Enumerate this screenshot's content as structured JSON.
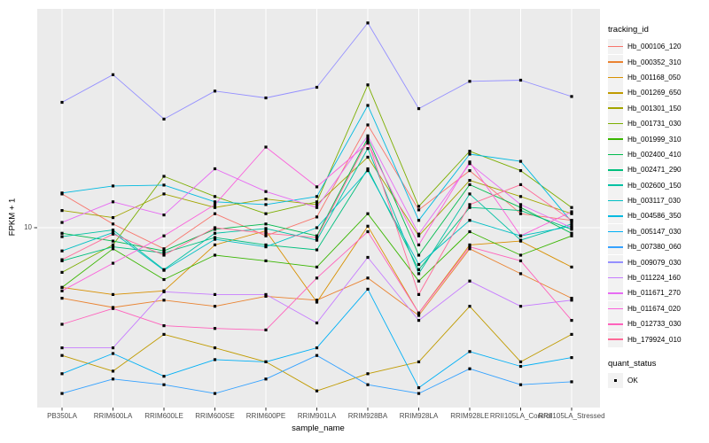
{
  "figure": {
    "background": "#FFFFFF",
    "panel_background": "#EBEBEB",
    "grid_color": "#FFFFFF",
    "tick_color": "#333333",
    "tick_label_color": "#4D4D4D",
    "point_color": "#000000"
  },
  "axes": {
    "y": {
      "label": "FPKM + 1",
      "scale": "log10",
      "tick_labels": [
        "10"
      ]
    },
    "x": {
      "label": "sample_name"
    }
  },
  "legend": {
    "tracking": {
      "title": "tracking_id"
    },
    "quant": {
      "title": "quant_status",
      "items": [
        {
          "label": "OK",
          "marker": "black-square"
        }
      ]
    }
  },
  "chart_data": {
    "type": "line",
    "title": "",
    "xlabel": "sample_name",
    "ylabel": "FPKM + 1",
    "yscale": "log10",
    "yticks": [
      10
    ],
    "ylim": [
      1,
      170
    ],
    "grid": true,
    "legend_position": "right",
    "marker": "black-square",
    "x": [
      "PB350LA",
      "RRIM600LA",
      "RRIM600LE",
      "RRIM600SE",
      "RRIM600PE",
      "RRIM901LA",
      "RRIM928BA",
      "RRIM928LA",
      "RRIM928LE",
      "RRII105LA_Control",
      "RRII105LA_Stressed"
    ],
    "series": [
      {
        "name": "Hb_000106_120",
        "color": "#F8766D",
        "values": [
          15.5,
          10.5,
          7.6,
          12.0,
          9.0,
          11.5,
          38.0,
          12.6,
          21.0,
          12.0,
          11.0
        ]
      },
      {
        "name": "Hb_000352_310",
        "color": "#EA8331",
        "values": [
          4.0,
          3.55,
          3.9,
          3.6,
          4.1,
          3.9,
          5.2,
          3.2,
          7.6,
          5.5,
          4.0
        ]
      },
      {
        "name": "Hb_001168_050",
        "color": "#D89000",
        "values": [
          4.6,
          4.2,
          4.4,
          8.0,
          9.6,
          3.8,
          10.2,
          3.3,
          8.0,
          8.4,
          6.0
        ]
      },
      {
        "name": "Hb_001269_650",
        "color": "#C09B00",
        "values": [
          1.9,
          1.55,
          2.5,
          2.1,
          1.75,
          1.2,
          1.5,
          1.75,
          3.6,
          1.75,
          2.5
        ]
      },
      {
        "name": "Hb_001301_150",
        "color": "#A3A500",
        "values": [
          12.5,
          11.4,
          15.5,
          13.0,
          14.5,
          13.5,
          25.0,
          9.0,
          18.5,
          15.0,
          12.0
        ]
      },
      {
        "name": "Hb_001731_030",
        "color": "#7CAE00",
        "values": [
          5.6,
          8.0,
          19.5,
          15.0,
          12.0,
          14.0,
          64.0,
          13.2,
          27.0,
          21.0,
          13.0
        ]
      },
      {
        "name": "Hb_001999_310",
        "color": "#39B600",
        "values": [
          4.6,
          7.6,
          5.1,
          7.0,
          6.5,
          6.0,
          12.0,
          5.0,
          9.5,
          7.0,
          9.0
        ]
      },
      {
        "name": "Hb_002400_410",
        "color": "#00BB4E",
        "values": [
          9.3,
          8.4,
          7.4,
          9.8,
          10.5,
          9.0,
          32.0,
          7.0,
          17.5,
          13.0,
          9.3
        ]
      },
      {
        "name": "Hb_002471_290",
        "color": "#00BF7D",
        "values": [
          6.5,
          7.8,
          7.2,
          8.8,
          8.0,
          7.5,
          21.5,
          5.8,
          13.0,
          12.5,
          9.8
        ]
      },
      {
        "name": "Hb_002600_150",
        "color": "#00C1A3",
        "values": [
          8.9,
          9.7,
          5.8,
          9.3,
          9.9,
          8.5,
          28.0,
          5.5,
          15.5,
          8.5,
          10.5
        ]
      },
      {
        "name": "Hb_003117_030",
        "color": "#00BFC4",
        "values": [
          7.4,
          9.4,
          5.75,
          8.6,
          7.8,
          10.0,
          21.0,
          6.2,
          11.0,
          9.0,
          10.2
        ]
      },
      {
        "name": "Hb_004586_350",
        "color": "#00BAE0",
        "values": [
          15.7,
          17.2,
          17.4,
          14.0,
          13.5,
          15.0,
          49.0,
          11.0,
          26.0,
          23.7,
          10.8
        ]
      },
      {
        "name": "Hb_005147_030",
        "color": "#00B0F6",
        "values": [
          1.5,
          1.95,
          1.45,
          1.8,
          1.75,
          2.1,
          4.5,
          1.25,
          2.0,
          1.65,
          1.85
        ]
      },
      {
        "name": "Hb_007380_060",
        "color": "#35A2FF",
        "values": [
          1.16,
          1.4,
          1.3,
          1.16,
          1.4,
          1.9,
          1.3,
          1.16,
          1.6,
          1.3,
          1.35
        ]
      },
      {
        "name": "Hb_009079_030",
        "color": "#9590FF",
        "values": [
          51.0,
          73.0,
          41.0,
          59.0,
          54.0,
          62.0,
          143.0,
          47.0,
          67.0,
          68.0,
          55.0
        ]
      },
      {
        "name": "Hb_011224_160",
        "color": "#C77CFF",
        "values": [
          2.1,
          2.1,
          4.35,
          4.2,
          4.2,
          2.9,
          6.8,
          3.0,
          5.0,
          3.6,
          3.9
        ]
      },
      {
        "name": "Hb_011671_270",
        "color": "#E76BF3",
        "values": [
          10.7,
          14.0,
          11.8,
          21.5,
          16.0,
          13.0,
          33.0,
          9.2,
          23.0,
          13.5,
          10.0
        ]
      },
      {
        "name": "Hb_011674_020",
        "color": "#FA62DB",
        "values": [
          4.4,
          6.3,
          9.0,
          13.5,
          28.5,
          17.0,
          30.0,
          8.0,
          23.5,
          9.0,
          12.3
        ]
      },
      {
        "name": "Hb_012733_030",
        "color": "#FF62BC",
        "values": [
          2.85,
          3.5,
          2.8,
          2.7,
          2.65,
          5.2,
          9.5,
          3.3,
          7.8,
          6.5,
          3.0
        ]
      },
      {
        "name": "Hb_179924_010",
        "color": "#FF6A98",
        "values": [
          6.6,
          9.2,
          7.0,
          10.0,
          9.3,
          8.8,
          31.0,
          4.2,
          13.5,
          17.5,
          11.0
        ]
      }
    ]
  }
}
